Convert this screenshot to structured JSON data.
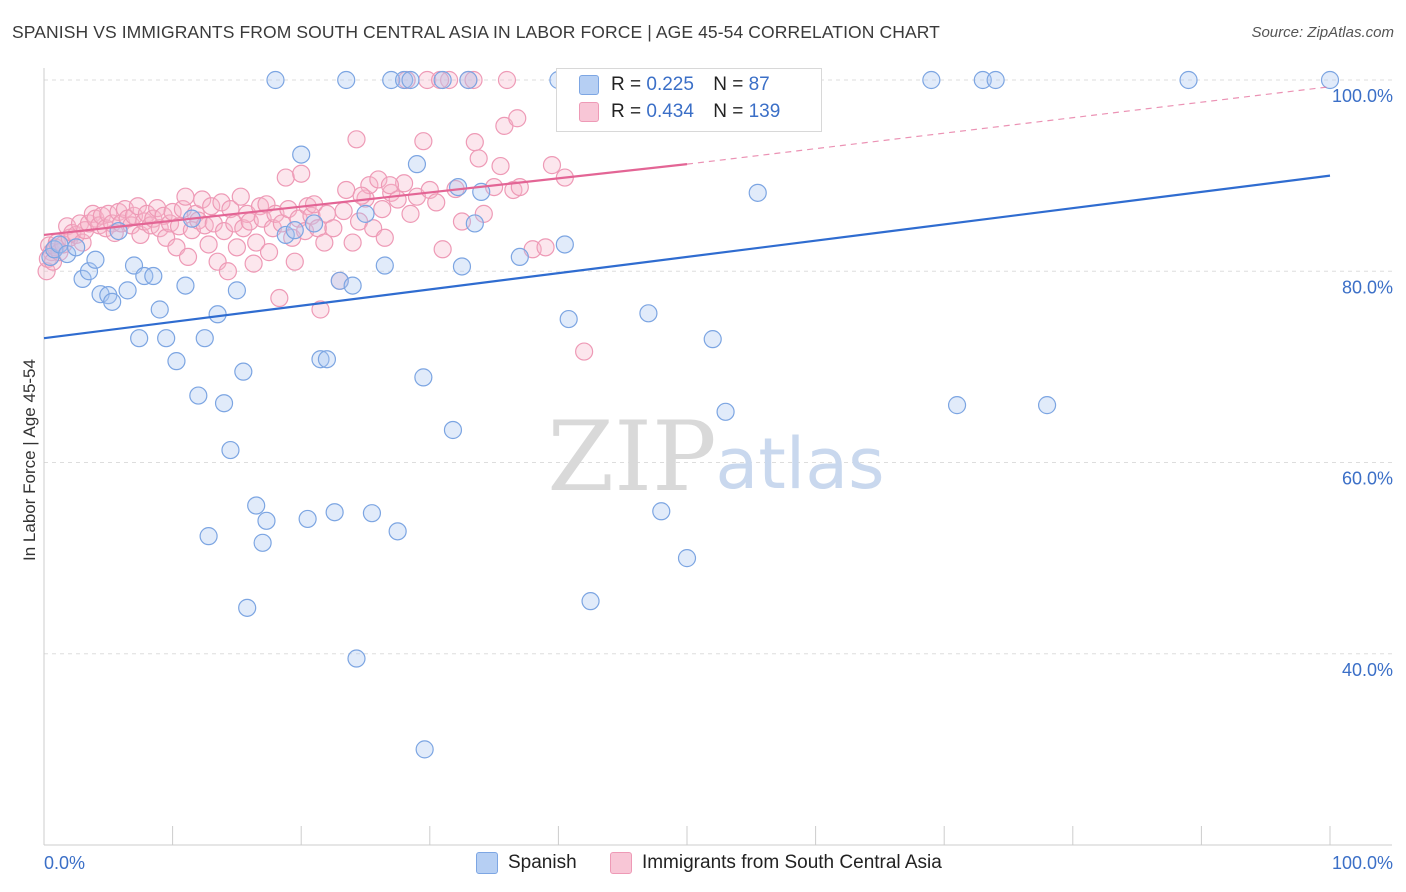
{
  "title": "SPANISH VS IMMIGRANTS FROM SOUTH CENTRAL ASIA IN LABOR FORCE | AGE 45-54 CORRELATION CHART",
  "source": "Source: ZipAtlas.com",
  "watermark": {
    "zip": "ZIP",
    "atlas": "atlas"
  },
  "colors": {
    "spanish": "#5b8fdc",
    "spanish_fill": "#aac6f2",
    "immigrants": "#e8709a",
    "immigrants_fill": "#f5b8cc",
    "axis_text": "#3b6fc7",
    "grid": "#dddddd"
  },
  "legend_top": [
    {
      "r_label": "R =",
      "r_value": "0.225",
      "n_label": "N =",
      "n_value": "87"
    },
    {
      "r_label": "R =",
      "r_value": "0.434",
      "n_label": "N =",
      "n_value": "139"
    }
  ],
  "legend_bottom": [
    "Spanish",
    "Immigrants from South Central Asia"
  ],
  "chart_data": {
    "type": "scatter",
    "title": "SPANISH VS IMMIGRANTS FROM SOUTH CENTRAL ASIA IN LABOR FORCE | AGE 45-54 CORRELATION CHART",
    "xlabel": "",
    "ylabel": "In Labor Force | Age 45-54",
    "xlim": [
      0,
      100
    ],
    "ylim": [
      20,
      100
    ],
    "x_tick_labels": [
      "0.0%",
      "100.0%"
    ],
    "y_ticks": [
      40,
      60,
      80,
      100
    ],
    "y_tick_labels": [
      "40.0%",
      "60.0%",
      "80.0%",
      "100.0%"
    ],
    "grid": true,
    "legend_position": "top-center",
    "series": [
      {
        "name": "Spanish",
        "r": 0.225,
        "n": 87,
        "trend": {
          "x": [
            0,
            100
          ],
          "y": [
            73.0,
            90.0
          ],
          "style": "solid"
        },
        "points": [
          [
            0.5,
            81.5
          ],
          [
            0.8,
            82.3
          ],
          [
            1.2,
            82.8
          ],
          [
            1.8,
            81.8
          ],
          [
            2.5,
            82.5
          ],
          [
            3.0,
            79.2
          ],
          [
            3.5,
            80.0
          ],
          [
            4.0,
            81.2
          ],
          [
            4.4,
            77.6
          ],
          [
            5.0,
            77.5
          ],
          [
            5.3,
            76.8
          ],
          [
            5.8,
            84.2
          ],
          [
            6.5,
            78.0
          ],
          [
            7.0,
            80.6
          ],
          [
            7.4,
            73.0
          ],
          [
            7.8,
            79.5
          ],
          [
            8.5,
            79.5
          ],
          [
            9.0,
            76.0
          ],
          [
            9.5,
            73.0
          ],
          [
            10.3,
            70.6
          ],
          [
            11.0,
            78.5
          ],
          [
            11.5,
            85.5
          ],
          [
            12.0,
            67.0
          ],
          [
            12.5,
            73.0
          ],
          [
            12.8,
            52.3
          ],
          [
            13.5,
            75.5
          ],
          [
            14.0,
            66.2
          ],
          [
            14.5,
            61.3
          ],
          [
            15.0,
            78.0
          ],
          [
            15.5,
            69.5
          ],
          [
            15.8,
            44.8
          ],
          [
            16.5,
            55.5
          ],
          [
            17.0,
            51.6
          ],
          [
            17.3,
            53.9
          ],
          [
            18.0,
            100.0
          ],
          [
            18.8,
            83.8
          ],
          [
            19.5,
            84.3
          ],
          [
            20.0,
            92.2
          ],
          [
            20.5,
            54.1
          ],
          [
            21.0,
            85.0
          ],
          [
            21.5,
            70.8
          ],
          [
            22.0,
            70.8
          ],
          [
            22.6,
            54.8
          ],
          [
            23.0,
            79.0
          ],
          [
            23.5,
            100.0
          ],
          [
            24.0,
            78.5
          ],
          [
            24.3,
            39.5
          ],
          [
            25.0,
            86.0
          ],
          [
            25.5,
            54.7
          ],
          [
            26.5,
            80.6
          ],
          [
            27.0,
            100.0
          ],
          [
            27.5,
            52.8
          ],
          [
            28.0,
            100.0
          ],
          [
            28.5,
            100.0
          ],
          [
            29.0,
            91.2
          ],
          [
            29.5,
            68.9
          ],
          [
            29.6,
            30.0
          ],
          [
            31.0,
            100.0
          ],
          [
            31.8,
            63.4
          ],
          [
            32.2,
            88.8
          ],
          [
            32.5,
            80.5
          ],
          [
            33.0,
            100.0
          ],
          [
            33.5,
            85.0
          ],
          [
            34.0,
            88.3
          ],
          [
            37.0,
            81.5
          ],
          [
            40.0,
            100.0
          ],
          [
            40.5,
            82.8
          ],
          [
            40.8,
            75.0
          ],
          [
            42.0,
            100.0
          ],
          [
            42.5,
            45.5
          ],
          [
            45.0,
            100.0
          ],
          [
            46.0,
            100.0
          ],
          [
            47.0,
            75.6
          ],
          [
            48.0,
            54.9
          ],
          [
            50.0,
            50.0
          ],
          [
            51.5,
            100.0
          ],
          [
            52.0,
            72.9
          ],
          [
            53.0,
            65.3
          ],
          [
            55.0,
            100.0
          ],
          [
            55.5,
            88.2
          ],
          [
            69.0,
            100.0
          ],
          [
            71.0,
            66.0
          ],
          [
            73.0,
            100.0
          ],
          [
            74.0,
            100.0
          ],
          [
            78.0,
            66.0
          ],
          [
            89.0,
            100.0
          ],
          [
            100.0,
            100.0
          ]
        ]
      },
      {
        "name": "Immigrants from South Central Asia",
        "r": 0.434,
        "n": 139,
        "trend": {
          "x": [
            0,
            50
          ],
          "y": [
            83.8,
            91.2
          ],
          "style": "solid",
          "extension": {
            "x": [
              50,
              100
            ],
            "y": [
              91.2,
              99.3
            ],
            "style": "dashed"
          }
        },
        "points": [
          [
            0.2,
            80.0
          ],
          [
            0.3,
            81.3
          ],
          [
            0.4,
            82.7
          ],
          [
            0.6,
            82.0
          ],
          [
            0.7,
            81.0
          ],
          [
            0.9,
            82.5
          ],
          [
            1.0,
            83.0
          ],
          [
            1.2,
            82.0
          ],
          [
            1.5,
            82.8
          ],
          [
            1.8,
            84.7
          ],
          [
            2.0,
            83.5
          ],
          [
            2.2,
            84.0
          ],
          [
            2.5,
            83.8
          ],
          [
            2.8,
            85.0
          ],
          [
            3.0,
            83.0
          ],
          [
            3.2,
            84.3
          ],
          [
            3.5,
            85.0
          ],
          [
            3.8,
            86.0
          ],
          [
            4.0,
            85.5
          ],
          [
            4.3,
            84.8
          ],
          [
            4.5,
            85.8
          ],
          [
            4.8,
            84.5
          ],
          [
            5.0,
            86.0
          ],
          [
            5.3,
            85.0
          ],
          [
            5.5,
            84.0
          ],
          [
            5.8,
            86.2
          ],
          [
            6.0,
            85.0
          ],
          [
            6.3,
            86.5
          ],
          [
            6.5,
            85.5
          ],
          [
            6.8,
            84.8
          ],
          [
            7.0,
            85.8
          ],
          [
            7.3,
            86.8
          ],
          [
            7.5,
            83.8
          ],
          [
            7.8,
            85.2
          ],
          [
            8.0,
            86.0
          ],
          [
            8.3,
            84.8
          ],
          [
            8.5,
            85.5
          ],
          [
            8.8,
            86.6
          ],
          [
            9.0,
            84.5
          ],
          [
            9.3,
            85.8
          ],
          [
            9.5,
            83.5
          ],
          [
            9.8,
            85.0
          ],
          [
            10.0,
            86.2
          ],
          [
            10.3,
            82.5
          ],
          [
            10.5,
            84.7
          ],
          [
            10.8,
            86.5
          ],
          [
            11.0,
            87.8
          ],
          [
            11.2,
            81.5
          ],
          [
            11.5,
            84.3
          ],
          [
            11.8,
            86.0
          ],
          [
            12.0,
            85.3
          ],
          [
            12.3,
            87.5
          ],
          [
            12.5,
            84.8
          ],
          [
            12.8,
            82.8
          ],
          [
            13.0,
            86.8
          ],
          [
            13.2,
            85.0
          ],
          [
            13.5,
            81.0
          ],
          [
            13.8,
            87.2
          ],
          [
            14.0,
            84.2
          ],
          [
            14.3,
            80.0
          ],
          [
            14.5,
            86.5
          ],
          [
            14.8,
            85.0
          ],
          [
            15.0,
            82.5
          ],
          [
            15.3,
            87.8
          ],
          [
            15.5,
            84.5
          ],
          [
            15.8,
            86.0
          ],
          [
            16.0,
            85.2
          ],
          [
            16.3,
            80.8
          ],
          [
            16.5,
            83.0
          ],
          [
            16.8,
            86.8
          ],
          [
            17.0,
            85.5
          ],
          [
            17.3,
            87.0
          ],
          [
            17.5,
            82.0
          ],
          [
            17.8,
            84.5
          ],
          [
            18.0,
            86.0
          ],
          [
            18.3,
            77.2
          ],
          [
            18.5,
            85.0
          ],
          [
            18.8,
            89.8
          ],
          [
            19.0,
            86.5
          ],
          [
            19.3,
            83.5
          ],
          [
            19.5,
            81.0
          ],
          [
            19.8,
            85.5
          ],
          [
            20.0,
            90.2
          ],
          [
            20.3,
            84.2
          ],
          [
            20.5,
            86.8
          ],
          [
            20.8,
            85.8
          ],
          [
            21.0,
            87.0
          ],
          [
            21.3,
            84.5
          ],
          [
            21.5,
            76.0
          ],
          [
            21.8,
            83.0
          ],
          [
            22.0,
            86.0
          ],
          [
            22.5,
            84.5
          ],
          [
            23.0,
            79.0
          ],
          [
            23.3,
            86.3
          ],
          [
            23.5,
            88.5
          ],
          [
            24.0,
            83.0
          ],
          [
            24.3,
            93.8
          ],
          [
            24.5,
            85.2
          ],
          [
            25.0,
            87.6
          ],
          [
            25.3,
            89.0
          ],
          [
            25.6,
            84.5
          ],
          [
            26.0,
            89.6
          ],
          [
            26.3,
            86.5
          ],
          [
            26.5,
            83.5
          ],
          [
            27.0,
            88.2
          ],
          [
            27.5,
            87.5
          ],
          [
            28.0,
            89.2
          ],
          [
            28.5,
            86.0
          ],
          [
            29.0,
            87.8
          ],
          [
            29.5,
            93.6
          ],
          [
            30.0,
            88.5
          ],
          [
            30.5,
            87.2
          ],
          [
            31.0,
            82.3
          ],
          [
            31.5,
            100.0
          ],
          [
            32.0,
            88.6
          ],
          [
            32.5,
            85.2
          ],
          [
            33.0,
            100.0
          ],
          [
            33.5,
            93.5
          ],
          [
            33.8,
            91.8
          ],
          [
            34.2,
            86.0
          ],
          [
            35.0,
            88.8
          ],
          [
            35.5,
            91.0
          ],
          [
            35.8,
            95.2
          ],
          [
            36.0,
            100.0
          ],
          [
            36.5,
            88.5
          ],
          [
            37.0,
            88.8
          ],
          [
            36.8,
            96.0
          ],
          [
            38.0,
            82.3
          ],
          [
            39.0,
            82.5
          ],
          [
            39.5,
            91.1
          ],
          [
            40.5,
            89.8
          ],
          [
            42.0,
            71.6
          ],
          [
            49.0,
            100.0
          ],
          [
            29.8,
            100.0
          ],
          [
            28.2,
            100.0
          ],
          [
            33.4,
            100.0
          ],
          [
            30.8,
            100.0
          ],
          [
            26.9,
            89.0
          ],
          [
            24.7,
            87.9
          ]
        ]
      }
    ]
  }
}
